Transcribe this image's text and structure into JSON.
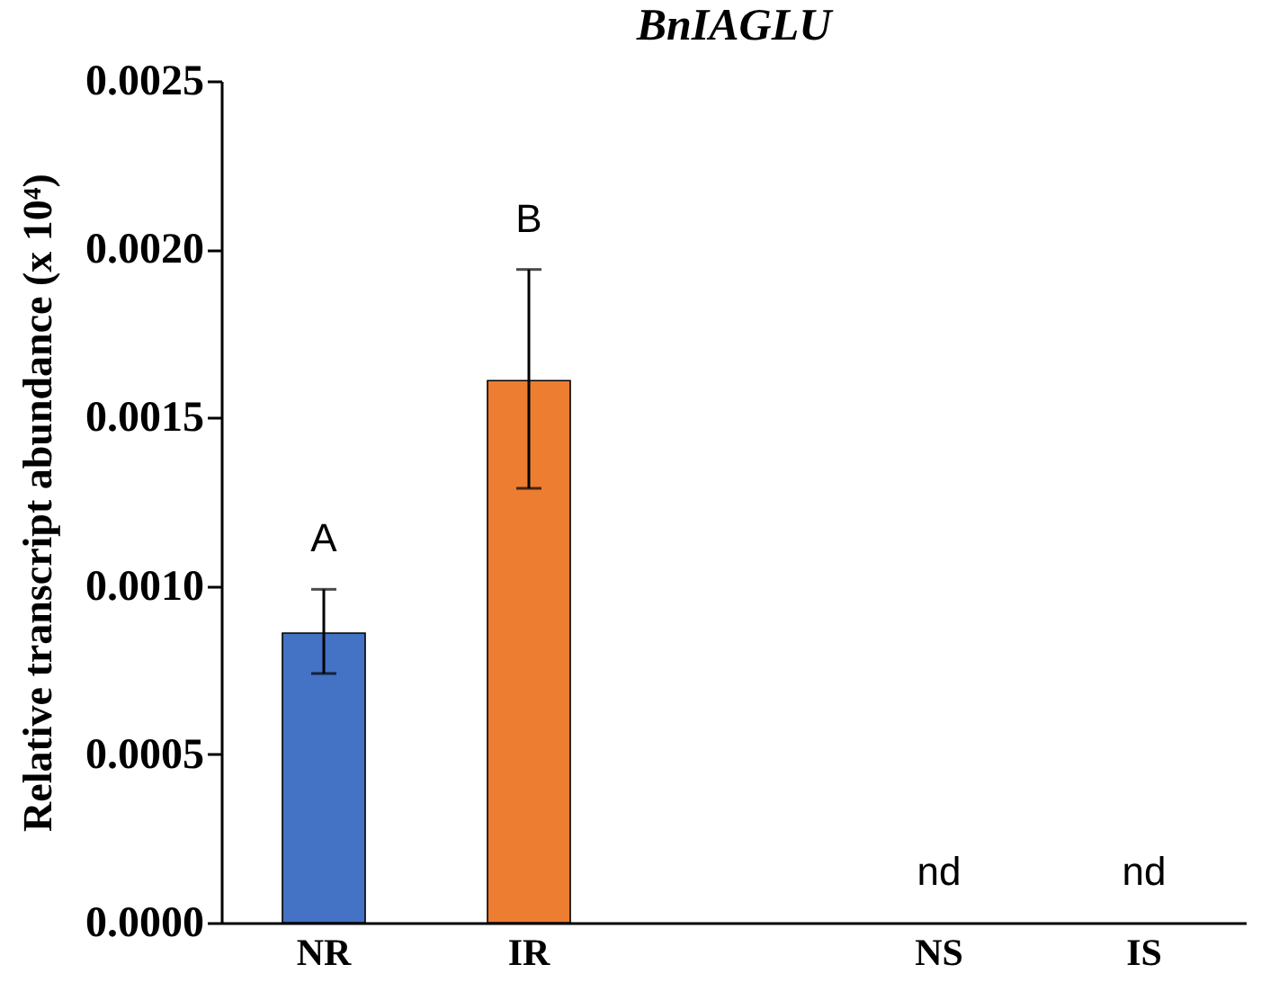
{
  "chart_data": {
    "type": "bar",
    "title": "BnIAGLU",
    "ylabel": "Relative transcript abundance (x 10⁴)",
    "categories": [
      "NR",
      "IR",
      null,
      "NS",
      "IS"
    ],
    "values": [
      0.00086,
      0.00161,
      null,
      null,
      null
    ],
    "colors": [
      "#4472c4",
      "#ed7d31",
      null,
      null,
      null
    ],
    "errors": [
      [
        0.00074,
        0.00099
      ],
      [
        0.00129,
        0.00194
      ],
      null,
      null,
      null
    ],
    "ylim": [
      0,
      0.0025
    ],
    "yticks": [
      {
        "value": 0,
        "label": "0.0000"
      },
      {
        "value": 0.0005,
        "label": "0.0005"
      },
      {
        "value": 0.001,
        "label": "0.0010"
      },
      {
        "value": 0.0015,
        "label": "0.0015"
      },
      {
        "value": 0.002,
        "label": "0.0020"
      },
      {
        "value": 0.0025,
        "label": "0.0025"
      }
    ],
    "annotations": [
      "A",
      "B",
      "nd",
      "nd"
    ],
    "grid": false
  }
}
